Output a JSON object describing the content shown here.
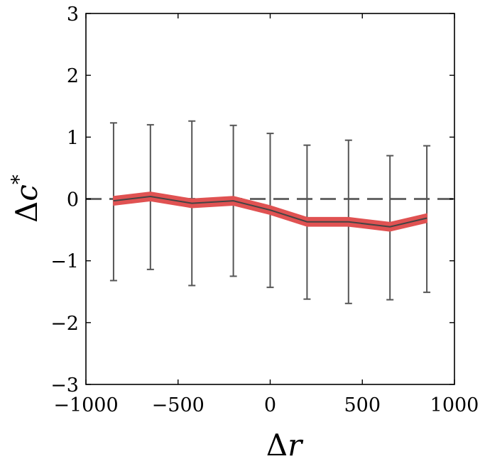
{
  "chart_data": {
    "type": "line",
    "xlabel_symbol": "Δ",
    "xlabel_var": "r",
    "ylabel_symbol": "Δ",
    "ylabel_var": "c",
    "ylabel_sup": "*",
    "xlim": [
      -1000,
      1000
    ],
    "ylim": [
      -3,
      3
    ],
    "xticks": [
      -1000,
      -500,
      0,
      500,
      1000
    ],
    "yticks": [
      -3,
      -2,
      -1,
      0,
      1,
      2,
      3
    ],
    "xtick_labels": [
      "−1000",
      "−500",
      "0",
      "500",
      "1000"
    ],
    "ytick_labels": [
      "−3",
      "−2",
      "−1",
      "0",
      "1",
      "2",
      "3"
    ],
    "grid": false,
    "reference_line": {
      "y": 0,
      "style": "dashed",
      "color": "#666666"
    },
    "series": [
      {
        "x": [
          -850,
          -650,
          -425,
          -200,
          0,
          200,
          425,
          650,
          850
        ],
        "y": [
          -0.03,
          0.04,
          -0.07,
          -0.03,
          -0.18,
          -0.37,
          -0.37,
          -0.45,
          -0.31
        ],
        "band_halfwidth": 0.07,
        "band_color": "#e05252",
        "line_color": "#444444",
        "error_lower": [
          -1.32,
          -1.14,
          -1.4,
          -1.25,
          -1.43,
          -1.62,
          -1.69,
          -1.63,
          -1.51
        ],
        "error_upper": [
          1.23,
          1.2,
          1.26,
          1.19,
          1.06,
          0.87,
          0.95,
          0.7,
          0.86
        ],
        "error_color": "#555555"
      }
    ]
  }
}
